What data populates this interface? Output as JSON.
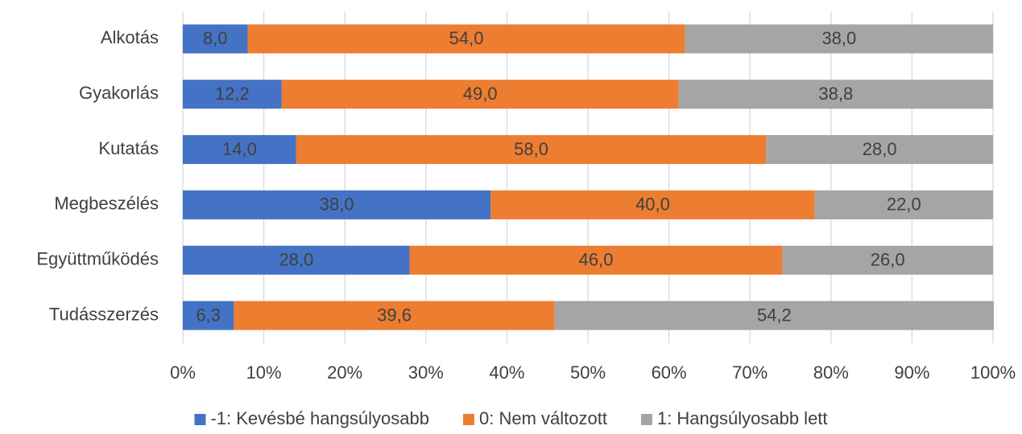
{
  "chart_data": {
    "type": "bar",
    "orientation": "horizontal",
    "stacked": true,
    "categories": [
      "Alkotás",
      "Gyakorlás",
      "Kutatás",
      "Megbeszélés",
      "Együttműködés",
      "Tudásszerzés"
    ],
    "series": [
      {
        "name": "-1: Kevésbé hangsúlyosabb",
        "color": "#4472c4",
        "values": [
          8.0,
          12.2,
          14.0,
          38.0,
          28.0,
          6.3
        ],
        "value_labels": [
          "8,0",
          "12,2",
          "14,0",
          "38,0",
          "28,0",
          "6,3"
        ]
      },
      {
        "name": "0: Nem változott",
        "color": "#ed7d31",
        "values": [
          54.0,
          49.0,
          58.0,
          40.0,
          46.0,
          39.6
        ],
        "value_labels": [
          "54,0",
          "49,0",
          "58,0",
          "40,0",
          "46,0",
          "39,6"
        ]
      },
      {
        "name": "1: Hangsúlyosabb lett",
        "color": "#a5a5a5",
        "values": [
          38.0,
          38.8,
          28.0,
          22.0,
          26.0,
          54.2
        ],
        "value_labels": [
          "38,0",
          "38,8",
          "28,0",
          "22,0",
          "26,0",
          "54,2"
        ]
      }
    ],
    "xlim": [
      0,
      100
    ],
    "xticks": [
      {
        "value": 0,
        "label": "0%"
      },
      {
        "value": 10,
        "label": "10%"
      },
      {
        "value": 20,
        "label": "20%"
      },
      {
        "value": 30,
        "label": "30%"
      },
      {
        "value": 40,
        "label": "40%"
      },
      {
        "value": 50,
        "label": "50%"
      },
      {
        "value": 60,
        "label": "60%"
      },
      {
        "value": 70,
        "label": "70%"
      },
      {
        "value": 80,
        "label": "80%"
      },
      {
        "value": 90,
        "label": "90%"
      },
      {
        "value": 100,
        "label": "100%"
      }
    ],
    "grid": true,
    "legend": "bottom"
  }
}
